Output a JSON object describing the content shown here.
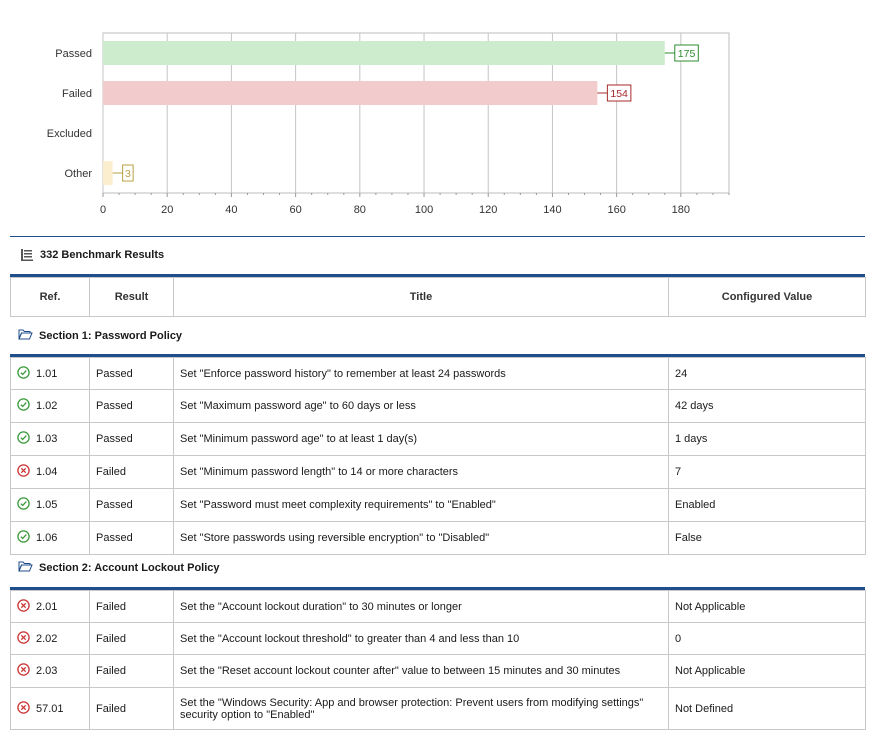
{
  "chart_data": {
    "type": "bar",
    "orientation": "horizontal",
    "categories": [
      "Passed",
      "Failed",
      "Excluded",
      "Other"
    ],
    "values": [
      175,
      154,
      0,
      3
    ],
    "colors": {
      "Passed": {
        "fill": "#cdeccd",
        "label": "#2e8b2e"
      },
      "Failed": {
        "fill": "#f2cccc",
        "label": "#a52a2a"
      },
      "Excluded": {
        "fill": "#dddddd",
        "label": "#777777"
      },
      "Other": {
        "fill": "#faeecf",
        "label": "#b8a040"
      }
    },
    "xlim": [
      0,
      195
    ],
    "xticks": [
      0,
      20,
      40,
      60,
      80,
      100,
      120,
      140,
      160,
      180
    ],
    "grid": true,
    "title": "",
    "xlabel": "",
    "ylabel": ""
  },
  "summary": {
    "title": "332 Benchmark Results",
    "icon": "list-icon"
  },
  "table": {
    "headers": [
      "Ref.",
      "Result",
      "Title",
      "Configured Value"
    ]
  },
  "sections": [
    {
      "title": "Section 1: Password Policy",
      "icon": "folder-icon",
      "rows": [
        {
          "ref": "1.01",
          "result": "Passed",
          "title": "Set \"Enforce password history\" to remember at least 24 passwords",
          "value": "24"
        },
        {
          "ref": "1.02",
          "result": "Passed",
          "title": "Set \"Maximum password age\" to 60 days or less",
          "value": "42 days"
        },
        {
          "ref": "1.03",
          "result": "Passed",
          "title": "Set \"Minimum password age\" to at least 1 day(s)",
          "value": "1 days"
        },
        {
          "ref": "1.04",
          "result": "Failed",
          "title": "Set \"Minimum password length\" to 14 or more characters",
          "value": "7"
        },
        {
          "ref": "1.05",
          "result": "Passed",
          "title": "Set \"Password must meet complexity requirements\" to \"Enabled\"",
          "value": "Enabled"
        },
        {
          "ref": "1.06",
          "result": "Passed",
          "title": "Set \"Store passwords using reversible encryption\" to \"Disabled\"",
          "value": "False"
        }
      ]
    },
    {
      "title": "Section 2: Account Lockout Policy",
      "icon": "folder-icon",
      "rows": [
        {
          "ref": "2.01",
          "result": "Failed",
          "title": "Set the \"Account lockout duration\" to 30 minutes or longer",
          "value": "Not Applicable"
        },
        {
          "ref": "2.02",
          "result": "Failed",
          "title": "Set the \"Account lockout threshold\" to greater than 4 and less than 10",
          "value": "0"
        },
        {
          "ref": "2.03",
          "result": "Failed",
          "title": "Set the \"Reset account lockout counter after\" value to between 15 minutes and 30 minutes",
          "value": "Not Applicable"
        },
        {
          "ref": "57.01",
          "result": "Failed",
          "title": "Set the \"Windows Security: App and browser protection: Prevent users from modifying settings\" security option to \"Enabled\"",
          "value": "Not Defined"
        }
      ]
    }
  ],
  "status_colors": {
    "Passed": "#3a9a3a",
    "Failed": "#cc3333"
  },
  "accent": "#1f4e8c"
}
